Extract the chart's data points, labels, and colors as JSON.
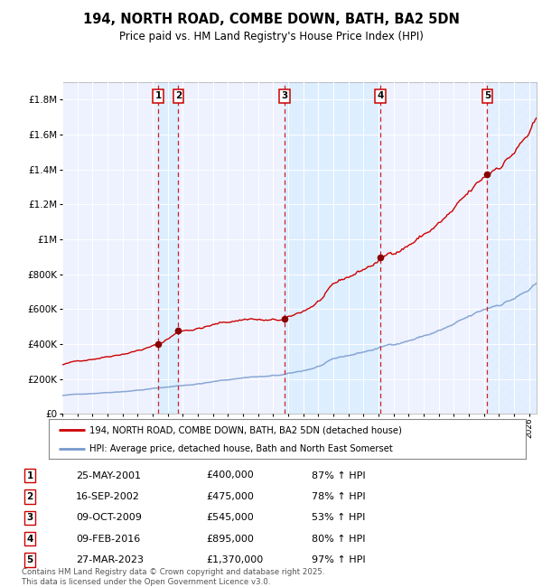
{
  "title": "194, NORTH ROAD, COMBE DOWN, BATH, BA2 5DN",
  "subtitle": "Price paid vs. HM Land Registry's House Price Index (HPI)",
  "legend_line1": "194, NORTH ROAD, COMBE DOWN, BATH, BA2 5DN (detached house)",
  "legend_line2": "HPI: Average price, detached house, Bath and North East Somerset",
  "footer": "Contains HM Land Registry data © Crown copyright and database right 2025.\nThis data is licensed under the Open Government Licence v3.0.",
  "sale_points": [
    {
      "num": 1,
      "date": "25-MAY-2001",
      "price": 400000,
      "year": 2001.38,
      "hpi_pct": "87% ↑ HPI"
    },
    {
      "num": 2,
      "date": "16-SEP-2002",
      "price": 475000,
      "year": 2002.71,
      "hpi_pct": "78% ↑ HPI"
    },
    {
      "num": 3,
      "date": "09-OCT-2009",
      "price": 545000,
      "year": 2009.77,
      "hpi_pct": "53% ↑ HPI"
    },
    {
      "num": 4,
      "date": "09-FEB-2016",
      "price": 895000,
      "year": 2016.11,
      "hpi_pct": "80% ↑ HPI"
    },
    {
      "num": 5,
      "date": "27-MAR-2023",
      "price": 1370000,
      "year": 2023.23,
      "hpi_pct": "97% ↑ HPI"
    }
  ],
  "hpi_color": "#7799cc",
  "price_color": "#cc0000",
  "marker_color": "#880000",
  "vline_color": "#cc2222",
  "shade_color": "#ddeeff",
  "ylim": [
    0,
    1900000
  ],
  "xlim_start": 1995.0,
  "xlim_end": 2026.5,
  "background_color": "#ffffff",
  "plot_bg_color": "#eef2ff"
}
